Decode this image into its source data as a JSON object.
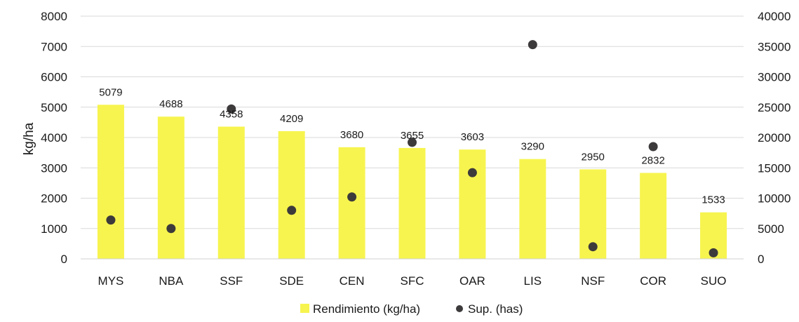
{
  "chart_data": {
    "type": "bar",
    "categories": [
      "MYS",
      "NBA",
      "SSF",
      "SDE",
      "CEN",
      "SFC",
      "OAR",
      "LIS",
      "NSF",
      "COR",
      "SUO"
    ],
    "series": [
      {
        "name": "Rendimiento (kg/ha)",
        "kind": "bar",
        "axis": "left",
        "color": "#f7f44f",
        "values": [
          5079,
          4688,
          4358,
          4209,
          3680,
          3655,
          3603,
          3290,
          2950,
          2832,
          1533
        ],
        "data_labels": [
          "5079",
          "4688",
          "4358",
          "4209",
          "3680",
          "3655",
          "3603",
          "3290",
          "2950",
          "2832",
          "1533"
        ]
      },
      {
        "name": "Sup. (has)",
        "kind": "scatter",
        "axis": "right",
        "color": "#3d3a3c",
        "values": [
          6400,
          5000,
          24700,
          8000,
          10200,
          19200,
          14200,
          35300,
          2000,
          18500,
          1000
        ]
      }
    ],
    "xlabel": "",
    "ylabel": "kg/ha",
    "ylim": [
      0,
      8000
    ],
    "yticks": [
      "0",
      "1000",
      "2000",
      "3000",
      "4000",
      "5000",
      "6000",
      "7000",
      "8000"
    ],
    "y2lim": [
      0,
      40000
    ],
    "y2ticks": [
      "0",
      "5000",
      "10000",
      "15000",
      "20000",
      "25000",
      "30000",
      "35000",
      "40000"
    ],
    "grid": true,
    "legend": "bottom"
  }
}
